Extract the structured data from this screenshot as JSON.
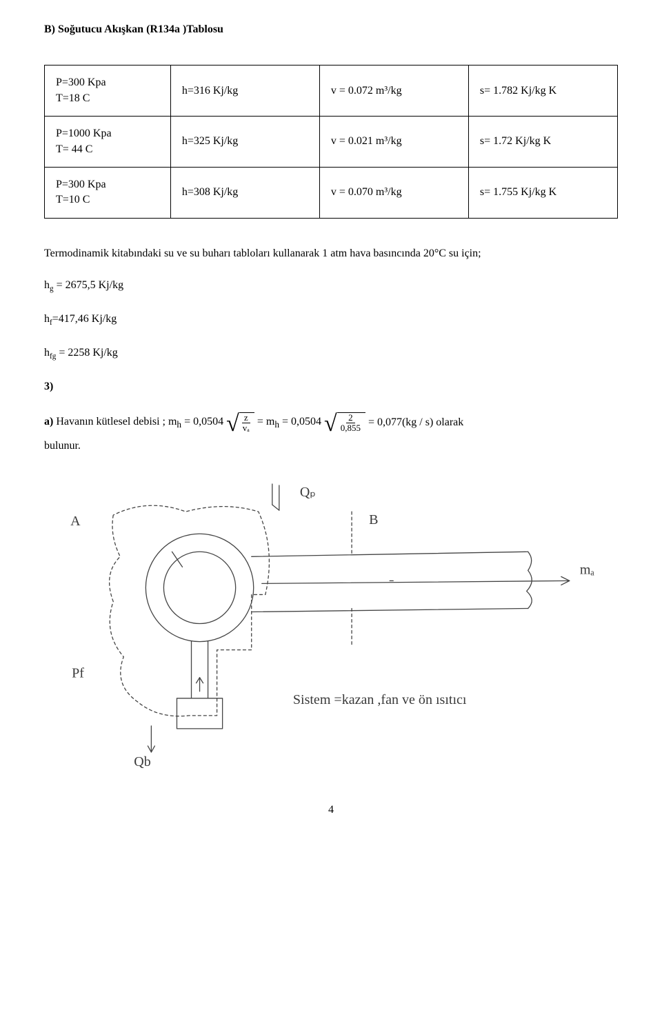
{
  "heading": "B) Soğutucu Akışkan (R134a )Tablosu",
  "columns": {
    "w0": "22%",
    "w1": "26%",
    "w2": "26%",
    "w3": "26%"
  },
  "rows": [
    {
      "cond_line1": "P=300 Kpa",
      "cond_line2": "T=18 C",
      "h": "h=316 Kj/kg",
      "v": "v = 0.072 m³/kg",
      "s": "s= 1.782 Kj/kg K"
    },
    {
      "cond_line1": "P=1000 Kpa",
      "cond_line2": "T= 44 C",
      "h": "h=325 Kj/kg",
      "v": "v = 0.021 m³/kg",
      "s": "s= 1.72 Kj/kg K"
    },
    {
      "cond_line1": "P=300 Kpa",
      "cond_line2": "T=10 C",
      "h": "h=308 Kj/kg",
      "v": "v = 0.070 m³/kg",
      "s": "s= 1.755 Kj/kg K"
    }
  ],
  "paragraph": "Termodinamik kitabındaki su ve su buharı tabloları kullanarak 1 atm hava basıncında 20°C su için;",
  "lines": {
    "hg": {
      "label": "h",
      "sub": "g",
      "rest": " = 2675,5 Kj/kg"
    },
    "hf": {
      "label": "h",
      "sub": "f",
      "rest": "=417,46 Kj/kg"
    },
    "hfg": {
      "label": "h",
      "sub": "fg",
      "rest": " = 2258 Kj/kg"
    }
  },
  "section_num": "3)",
  "eq": {
    "prefix_bold": "a) ",
    "prefix_text": "Havanın kütlesel debisi ; m",
    "prefix_sub": "h",
    "eq1": " = 0,0504 ",
    "frac1": {
      "num": "z",
      "den": "vₐ"
    },
    "eq2": " = m",
    "eq2_sub": "h",
    "eq3": " = 0,0504 ",
    "frac2": {
      "num": "2",
      "den": "0,855"
    },
    "eq_tail": " = 0,077(kg / s) olarak"
  },
  "after_eq": "bulunur.",
  "diagram": {
    "labels": {
      "A": "A",
      "B": "B",
      "Qp": "Qₚ",
      "ma": "mₐ",
      "Pf": "Pf",
      "Qb": "Qb",
      "caption": "Sistem =kazan ,fan ve ön ısıtıcı"
    },
    "stroke": "#444444",
    "stroke_width": 1.3,
    "font_size": 20
  },
  "page_number": "4"
}
